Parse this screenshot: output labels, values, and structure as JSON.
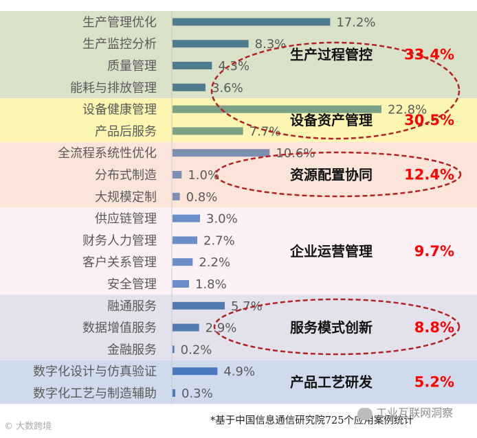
{
  "chart_data": {
    "type": "bar",
    "orientation": "horizontal",
    "unit": "%",
    "categories": [
      "生产管理优化",
      "生产监控分析",
      "质量管理",
      "能耗与排放管理",
      "设备健康管理",
      "产品后服务",
      "全流程系统性优化",
      "分布式制造",
      "大规模定制",
      "供应链管理",
      "财务人力管理",
      "客户关系管理",
      "安全管理",
      "融通服务",
      "数据增值服务",
      "金融服务",
      "数字化设计与仿真验证",
      "数字化工艺与制造辅助"
    ],
    "values": [
      17.2,
      8.3,
      4.3,
      3.6,
      22.8,
      7.7,
      10.6,
      1.0,
      0.8,
      3.0,
      2.7,
      2.2,
      1.8,
      5.7,
      2.9,
      0.2,
      4.9,
      0.3
    ],
    "value_labels": [
      "17.2%",
      "8.3%",
      "4.3%",
      "3.6%",
      "22.8%",
      "7.7%",
      "10.6%",
      "1.0%",
      "0.8%",
      "3.0%",
      "2.7%",
      "2.2%",
      "1.8%",
      "5.7%",
      "2.9%",
      "0.2%",
      "4.9%",
      "0.3%"
    ],
    "xlim": [
      0,
      30
    ],
    "groups": [
      {
        "name": "生产过程管控",
        "share": "33.4%",
        "start": 0,
        "count": 4,
        "band_color": "#d9e1c9",
        "bar_color": "#4f7b8f",
        "circled": true
      },
      {
        "name": "设备资产管理",
        "share": "30.5%",
        "start": 4,
        "count": 2,
        "band_color": "#fdf6b2",
        "bar_color": "#7aa085",
        "circled": true
      },
      {
        "name": "资源配置协同",
        "share": "12.4%",
        "start": 6,
        "count": 3,
        "band_color": "#fbe5da",
        "bar_color": "#7d8fb0",
        "circled": true
      },
      {
        "name": "企业运营管理",
        "share": "9.7%",
        "start": 9,
        "count": 4,
        "band_color": "#fdf0f6",
        "bar_color": "#6b8dc9",
        "circled": false
      },
      {
        "name": "服务模式创新",
        "share": "8.8%",
        "start": 13,
        "count": 3,
        "band_color": "#e3e1ec",
        "bar_color": "#4f7bae",
        "circled": true
      },
      {
        "name": "产品工艺研发",
        "share": "5.2%",
        "start": 16,
        "count": 2,
        "band_color": "#cfdbec",
        "bar_color": "#4a78bf",
        "circled": false
      }
    ],
    "share_color": "#ff0000",
    "ellipse_color": "#b22222"
  },
  "footnote": "*基于中国信息通信研究院725个应用案例统计",
  "watermark_left": "大数跨境",
  "watermark_right": "工业互联网洞察"
}
